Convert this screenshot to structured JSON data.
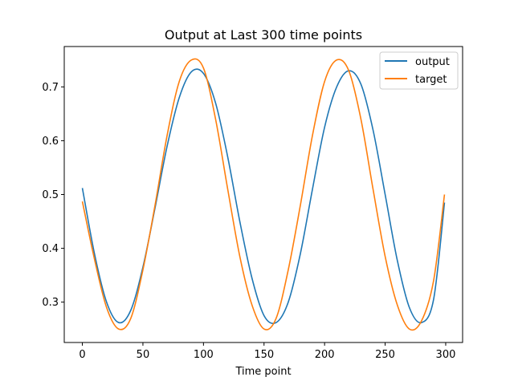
{
  "chart_data": {
    "type": "line",
    "title": "Output at Last 300 time points",
    "xlabel": "Time point",
    "ylabel": "",
    "xlim": [
      -14.95,
      313.95
    ],
    "ylim": [
      0.225,
      0.775
    ],
    "xticks": [
      0,
      50,
      100,
      150,
      200,
      250,
      300
    ],
    "yticks": [
      0.3,
      0.4,
      0.5,
      0.6,
      0.7
    ],
    "ytick_labels": [
      "0.3",
      "0.4",
      "0.5",
      "0.6",
      "0.7"
    ],
    "legend": "top-right",
    "grid": false,
    "series": [
      {
        "name": "output",
        "color": "#1f77b4",
        "x": [
          0,
          10,
          20,
          30,
          40,
          50,
          60,
          70,
          80,
          90,
          100,
          110,
          120,
          130,
          140,
          150,
          160,
          170,
          180,
          190,
          200,
          210,
          220,
          230,
          240,
          250,
          260,
          270,
          280,
          290,
          299
        ],
        "values": [
          0.512,
          0.39,
          0.3,
          0.262,
          0.285,
          0.365,
          0.475,
          0.59,
          0.68,
          0.728,
          0.725,
          0.67,
          0.57,
          0.45,
          0.345,
          0.275,
          0.262,
          0.3,
          0.39,
          0.51,
          0.625,
          0.7,
          0.73,
          0.705,
          0.62,
          0.5,
          0.378,
          0.29,
          0.262,
          0.305,
          0.485
        ]
      },
      {
        "name": "target",
        "color": "#ff7f0e",
        "x": [
          0,
          10,
          20,
          30,
          40,
          50,
          60,
          70,
          80,
          90,
          100,
          110,
          120,
          130,
          140,
          150,
          160,
          170,
          180,
          190,
          200,
          210,
          220,
          230,
          240,
          250,
          260,
          270,
          280,
          290,
          299
        ],
        "values": [
          0.487,
          0.38,
          0.29,
          0.25,
          0.27,
          0.36,
          0.48,
          0.61,
          0.71,
          0.75,
          0.735,
          0.64,
          0.51,
          0.385,
          0.295,
          0.25,
          0.27,
          0.36,
          0.48,
          0.61,
          0.71,
          0.75,
          0.73,
          0.64,
          0.51,
          0.385,
          0.295,
          0.25,
          0.265,
          0.34,
          0.5
        ]
      }
    ]
  }
}
